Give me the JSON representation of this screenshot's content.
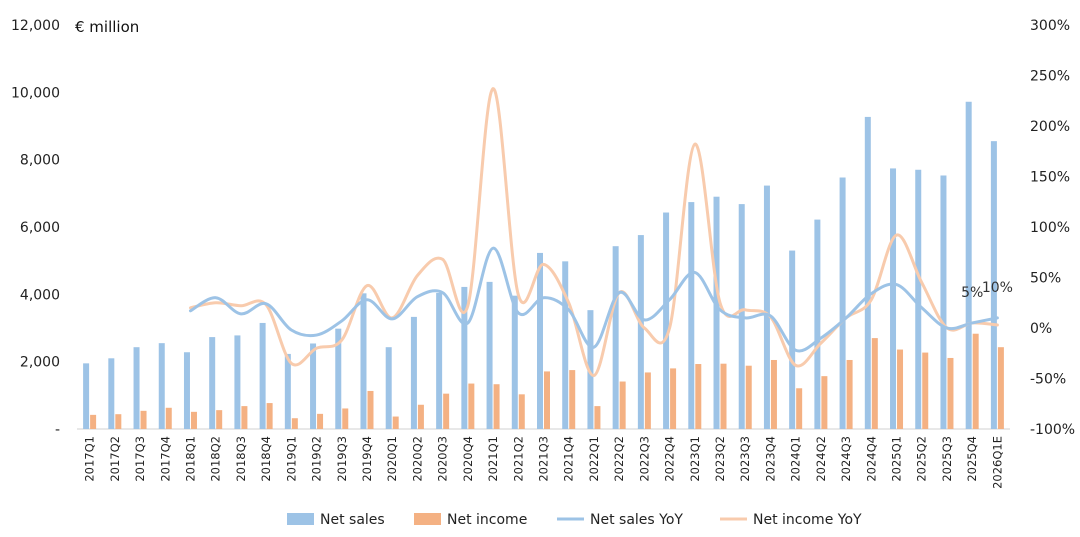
{
  "chart_data": {
    "type": "bar",
    "title": "",
    "unit_label": "€ million",
    "xlabel": "",
    "ylabel": "",
    "ylim": [
      0,
      12000
    ],
    "y2lim": [
      -100,
      300
    ],
    "y_ticks": [
      "-",
      "2,000",
      "4,000",
      "6,000",
      "8,000",
      "10,000",
      "12,000"
    ],
    "y2_ticks": [
      "-100%",
      "-50%",
      "0%",
      "50%",
      "100%",
      "150%",
      "200%",
      "250%",
      "300%"
    ],
    "grid": false,
    "legend_position": "bottom",
    "categories": [
      "2017Q1",
      "2017Q2",
      "2017Q3",
      "2017Q4",
      "2018Q1",
      "2018Q2",
      "2018Q3",
      "2018Q4",
      "2019Q1",
      "2019Q2",
      "2019Q3",
      "2019Q4",
      "2020Q1",
      "2020Q2",
      "2020Q3",
      "2020Q4",
      "2021Q1",
      "2021Q2",
      "2021Q3",
      "2021Q4",
      "2022Q1",
      "2022Q2",
      "2022Q3",
      "2022Q4",
      "2023Q1",
      "2023Q2",
      "2023Q3",
      "2023Q4",
      "2024Q1",
      "2024Q2",
      "2024Q3",
      "2024Q4",
      "2025Q1",
      "2025Q2",
      "2025Q3",
      "2025Q4",
      "2026Q1E"
    ],
    "series": [
      {
        "name": "Net sales",
        "type": "bar",
        "axis": "left",
        "color": "#9DC3E6",
        "values": [
          1950,
          2100,
          2430,
          2550,
          2280,
          2730,
          2780,
          3150,
          2230,
          2540,
          2980,
          4030,
          2430,
          3330,
          4040,
          4220,
          4370,
          3960,
          5230,
          4980,
          3530,
          5430,
          5760,
          6430,
          6740,
          6900,
          6680,
          7230,
          5300,
          6220,
          7470,
          9270,
          7740,
          7700,
          7530,
          9720,
          8550
        ]
      },
      {
        "name": "Net income",
        "type": "bar",
        "axis": "left",
        "color": "#F4B183",
        "values": [
          420,
          440,
          540,
          630,
          510,
          560,
          680,
          770,
          320,
          450,
          610,
          1130,
          370,
          720,
          1050,
          1350,
          1330,
          1030,
          1710,
          1750,
          680,
          1410,
          1680,
          1800,
          1930,
          1940,
          1880,
          2050,
          1210,
          1570,
          2050,
          2700,
          2360,
          2270,
          2110,
          2830,
          2430
        ]
      },
      {
        "name": "Net sales YoY",
        "type": "line",
        "axis": "right",
        "color": "#9DC3E6",
        "values": [
          null,
          null,
          null,
          null,
          17,
          30,
          14,
          24,
          -2,
          -7,
          7,
          28,
          9,
          31,
          35,
          5,
          79,
          15,
          30,
          18,
          -19,
          35,
          8,
          28,
          55,
          18,
          10,
          12,
          -22,
          -10,
          10,
          34,
          43,
          20,
          0,
          5,
          10
        ]
      },
      {
        "name": "Net income YoY",
        "type": "line",
        "axis": "right",
        "color": "#F8CBAD",
        "values": [
          null,
          null,
          null,
          null,
          20,
          25,
          22,
          23,
          -35,
          -20,
          -12,
          42,
          10,
          52,
          68,
          22,
          237,
          33,
          63,
          25,
          -47,
          35,
          0,
          0,
          182,
          25,
          18,
          11,
          -37,
          -15,
          10,
          28,
          92,
          45,
          0,
          5,
          3
        ]
      }
    ],
    "annotations": [
      {
        "text": "5%",
        "category": "2025Q4",
        "series": "Net sales YoY",
        "value": 5
      },
      {
        "text": "10%",
        "category": "2026Q1E",
        "series": "Net sales YoY",
        "value": 10
      }
    ]
  }
}
